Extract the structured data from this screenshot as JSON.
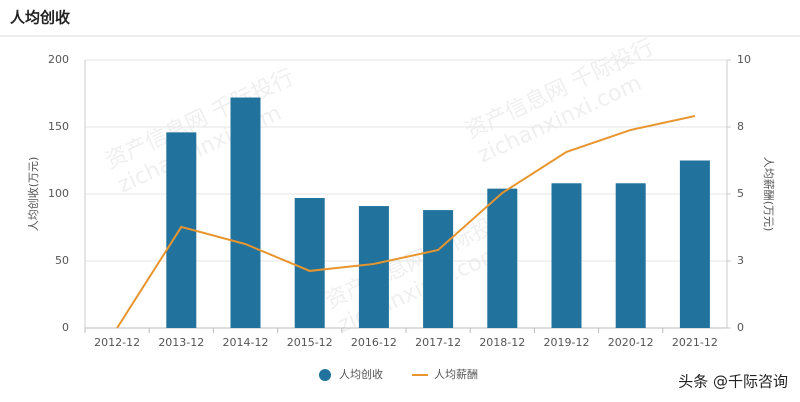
{
  "header": {
    "title": "人均创收"
  },
  "chart_data": {
    "type": "bar",
    "categories": [
      "2012-12",
      "2013-12",
      "2014-12",
      "2015-12",
      "2016-12",
      "2017-12",
      "2018-12",
      "2019-12",
      "2020-12",
      "2021-12"
    ],
    "series": [
      {
        "name": "人均创收",
        "type": "bar",
        "color": "#21729c",
        "values": [
          null,
          146,
          172,
          97,
          91,
          88,
          104,
          108,
          108,
          125
        ]
      },
      {
        "name": "人均薪酬",
        "type": "line",
        "axis": "y2",
        "color": "#e8952e",
        "values": [
          0,
          3.77,
          3.13,
          2.13,
          2.39,
          2.91,
          5.04,
          6.57,
          7.39,
          7.91
        ]
      }
    ],
    "ylabel": "人均创收(万元)",
    "y2label": "人均薪酬(万元)",
    "ylim": [
      0,
      200
    ],
    "yticks": [
      0,
      50,
      100,
      150,
      200
    ],
    "y2lim": [
      0,
      10
    ],
    "y2ticks": [
      0,
      {
        "value": 2.5,
        "label": "3"
      },
      5,
      {
        "value": 7.5,
        "label": "8"
      },
      10
    ],
    "grid": true,
    "legend": "bottom"
  },
  "watermarks": [
    "资产信息网 千际投行",
    "zichanxinxi.com"
  ],
  "credit": "头条 @千际咨询"
}
